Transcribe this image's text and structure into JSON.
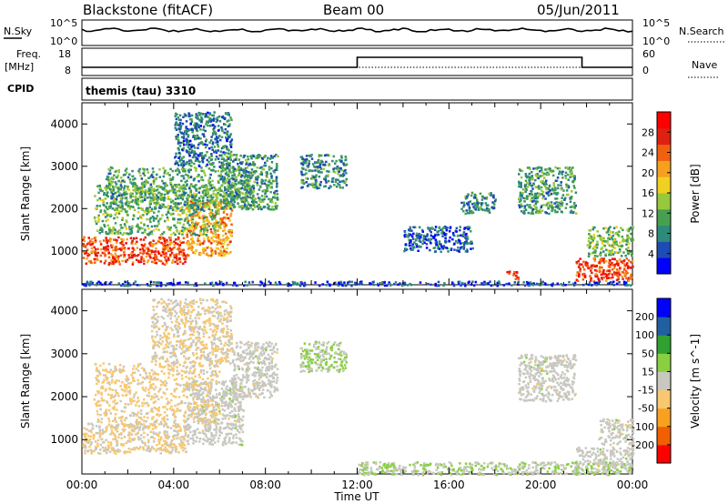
{
  "header": {
    "station": "Blackstone (fitACF)",
    "beam": "Beam 00",
    "date": "05/Jun/2011"
  },
  "strip_nsky": {
    "left_label": "N.Sky",
    "right_label": "N.Search",
    "left_ticks": [
      "10^5",
      "10^0"
    ],
    "right_ticks": [
      "10^5",
      "10^0"
    ]
  },
  "strip_freq": {
    "left_label_1": "Freq.",
    "left_label_2": "[MHz]",
    "right_label": "Nave",
    "left_ticks": [
      "18",
      "8"
    ],
    "right_ticks": [
      "60",
      "0"
    ],
    "nave_low": 2,
    "nave_high": 50,
    "nave_step_up_hour": 12.0,
    "nave_step_down_hour": 21.8
  },
  "strip_cpid": {
    "left_label": "CPID",
    "program": "themis (tau) 3310"
  },
  "chart_data": [
    {
      "type": "heatmap",
      "title": "",
      "xlabel": "",
      "ylabel": "Slant Range [km]",
      "xlim": [
        0,
        24
      ],
      "ylim": [
        200,
        4500
      ],
      "y_ticks": [
        "1000",
        "2000",
        "3000",
        "4000"
      ],
      "colorbar_label": "Power [dB]",
      "colorbar_ticks": [
        "28",
        "24",
        "20",
        "16",
        "12",
        "8",
        "4"
      ],
      "colorbar_colors": [
        "#0000ff",
        "#1e4bb4",
        "#2e8a7a",
        "#46a050",
        "#98c83c",
        "#f0d020",
        "#f7a020",
        "#f06010",
        "#e02010",
        "#ff0000"
      ],
      "regions": [
        {
          "t0": 0.0,
          "t1": 4.5,
          "r0": 700,
          "r1": 1350,
          "v": 24
        },
        {
          "t0": 4.5,
          "t1": 6.5,
          "r0": 900,
          "r1": 2200,
          "v": 20
        },
        {
          "t0": 0.5,
          "t1": 6.0,
          "r0": 1400,
          "r1": 2600,
          "v": 11
        },
        {
          "t0": 1.0,
          "t1": 7.5,
          "r0": 2000,
          "r1": 3000,
          "v": 10
        },
        {
          "t0": 4.0,
          "t1": 6.5,
          "r0": 3000,
          "r1": 4300,
          "v": 7
        },
        {
          "t0": 6.0,
          "t1": 8.5,
          "r0": 2000,
          "r1": 3300,
          "v": 9
        },
        {
          "t0": 9.5,
          "t1": 11.5,
          "r0": 2500,
          "r1": 3300,
          "v": 8
        },
        {
          "t0": 14.0,
          "t1": 17.0,
          "r0": 1000,
          "r1": 1600,
          "v": 5
        },
        {
          "t0": 16.5,
          "t1": 18.0,
          "r0": 1900,
          "r1": 2400,
          "v": 8
        },
        {
          "t0": 19.0,
          "t1": 21.5,
          "r0": 1900,
          "r1": 3000,
          "v": 9
        },
        {
          "t0": 18.5,
          "t1": 19.0,
          "r0": 350,
          "r1": 550,
          "v": 26
        },
        {
          "t0": 21.5,
          "t1": 24.0,
          "r0": 300,
          "r1": 850,
          "v": 25
        },
        {
          "t0": 22.0,
          "t1": 24.0,
          "r0": 900,
          "r1": 1600,
          "v": 12
        },
        {
          "t0": 0.0,
          "t1": 24.0,
          "r0": 200,
          "r1": 300,
          "v": 4
        }
      ]
    },
    {
      "type": "heatmap",
      "title": "",
      "xlabel": "Time UT",
      "ylabel": "Slant Range [km]",
      "xlim": [
        0,
        24
      ],
      "ylim": [
        200,
        4500
      ],
      "x_ticks": [
        "00:00",
        "04:00",
        "08:00",
        "12:00",
        "16:00",
        "20:00",
        "00:00"
      ],
      "y_ticks": [
        "1000",
        "2000",
        "3000",
        "4000"
      ],
      "colorbar_label": "Velocity [m s^-1]",
      "colorbar_ticks": [
        "200",
        "100",
        "50",
        "15",
        "-15",
        "-50",
        "-100",
        "-200"
      ],
      "colorbar_colors": [
        "#ff0000",
        "#f06000",
        "#f8a020",
        "#f8c870",
        "#c8c8c0",
        "#88d040",
        "#30a030",
        "#2060a0",
        "#0000ff"
      ],
      "regions": [
        {
          "t0": 0.0,
          "t1": 4.5,
          "r0": 700,
          "r1": 1400,
          "v": -30
        },
        {
          "t0": 4.5,
          "t1": 7.0,
          "r0": 900,
          "r1": 2400,
          "v": 0
        },
        {
          "t0": 0.5,
          "t1": 6.0,
          "r0": 1400,
          "r1": 2800,
          "v": -40
        },
        {
          "t0": 3.0,
          "t1": 6.5,
          "r0": 2800,
          "r1": 4300,
          "v": -25
        },
        {
          "t0": 6.5,
          "t1": 8.5,
          "r0": 2000,
          "r1": 3300,
          "v": 0
        },
        {
          "t0": 9.5,
          "t1": 11.5,
          "r0": 2600,
          "r1": 3300,
          "v": 30
        },
        {
          "t0": 19.0,
          "t1": 21.5,
          "r0": 1900,
          "r1": 3000,
          "v": 0
        },
        {
          "t0": 21.5,
          "t1": 24.0,
          "r0": 300,
          "r1": 850,
          "v": 0
        },
        {
          "t0": 22.5,
          "t1": 24.0,
          "r0": 900,
          "r1": 1500,
          "v": 0
        },
        {
          "t0": 12.0,
          "t1": 24.0,
          "r0": 200,
          "r1": 500,
          "v": 20
        }
      ]
    }
  ]
}
